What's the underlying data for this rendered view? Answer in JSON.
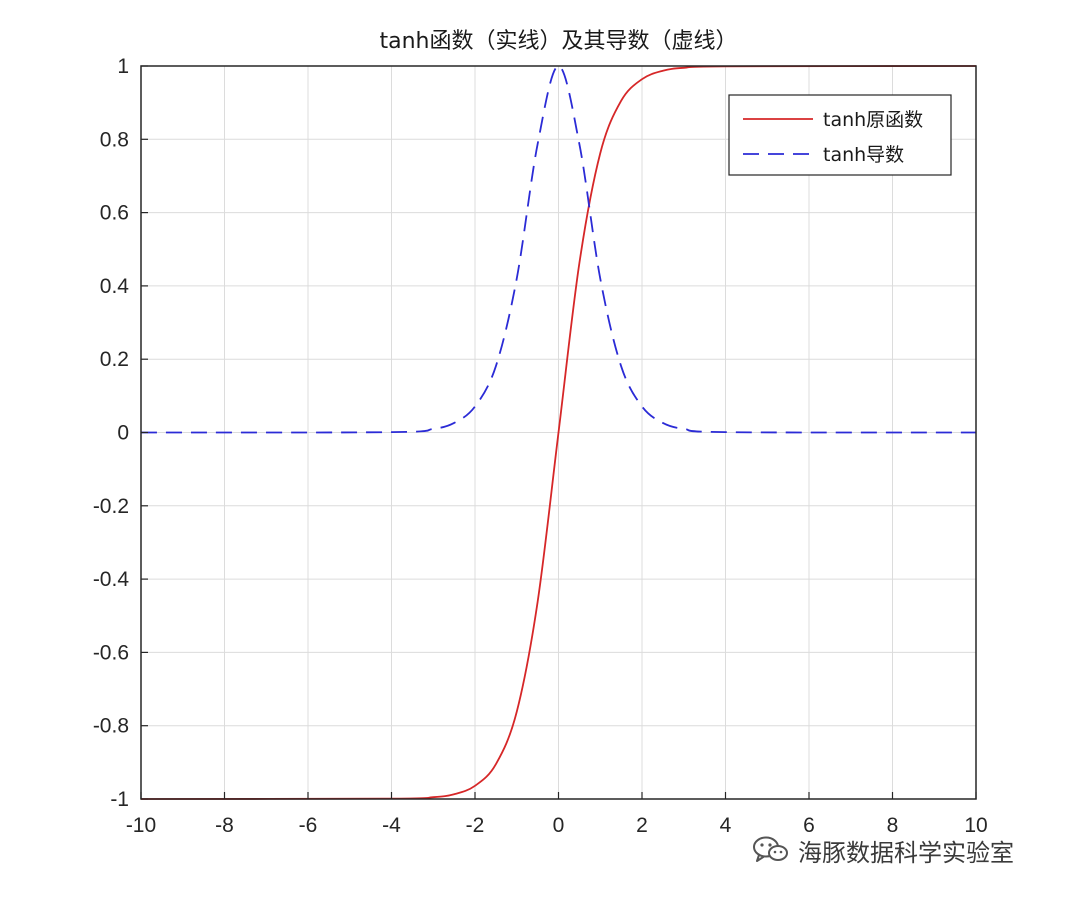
{
  "chart_data": {
    "type": "line",
    "title": "tanh函数（实线）及其导数（虚线）",
    "xlabel": "",
    "ylabel": "",
    "xlim": [
      -10,
      10
    ],
    "ylim": [
      -1,
      1
    ],
    "xticks": [
      -10,
      -8,
      -6,
      -4,
      -2,
      0,
      2,
      4,
      6,
      8,
      10
    ],
    "yticks": [
      1,
      0.8,
      0.6,
      0.4,
      0.2,
      0,
      -0.2,
      -0.4,
      -0.6,
      -0.8,
      -1
    ],
    "grid": true,
    "legend_position": "top-right",
    "series": [
      {
        "name": "tanh原函数",
        "color": "#d62728",
        "style": "solid",
        "x": [
          -10,
          -4,
          -3,
          -2.5,
          -2,
          -1.5,
          -1,
          -0.5,
          0,
          0.5,
          1,
          1.5,
          2,
          2.5,
          3,
          4,
          10
        ],
        "y": [
          -1,
          -0.999,
          -0.995,
          -0.987,
          -0.964,
          -0.905,
          -0.762,
          -0.462,
          0,
          0.462,
          0.762,
          0.905,
          0.964,
          0.987,
          0.995,
          0.999,
          1
        ]
      },
      {
        "name": "tanh导数",
        "color": "#2b2bd6",
        "style": "dashed",
        "x": [
          -10,
          -4,
          -3,
          -2.5,
          -2,
          -1.5,
          -1,
          -0.5,
          0,
          0.5,
          1,
          1.5,
          2,
          2.5,
          3,
          4,
          10
        ],
        "y": [
          0,
          0.001,
          0.01,
          0.026,
          0.071,
          0.181,
          0.42,
          0.787,
          1,
          0.787,
          0.42,
          0.181,
          0.071,
          0.026,
          0.01,
          0.001,
          0
        ]
      }
    ]
  },
  "watermark": {
    "text": "海豚数据科学实验室",
    "icon": "wechat-icon"
  }
}
